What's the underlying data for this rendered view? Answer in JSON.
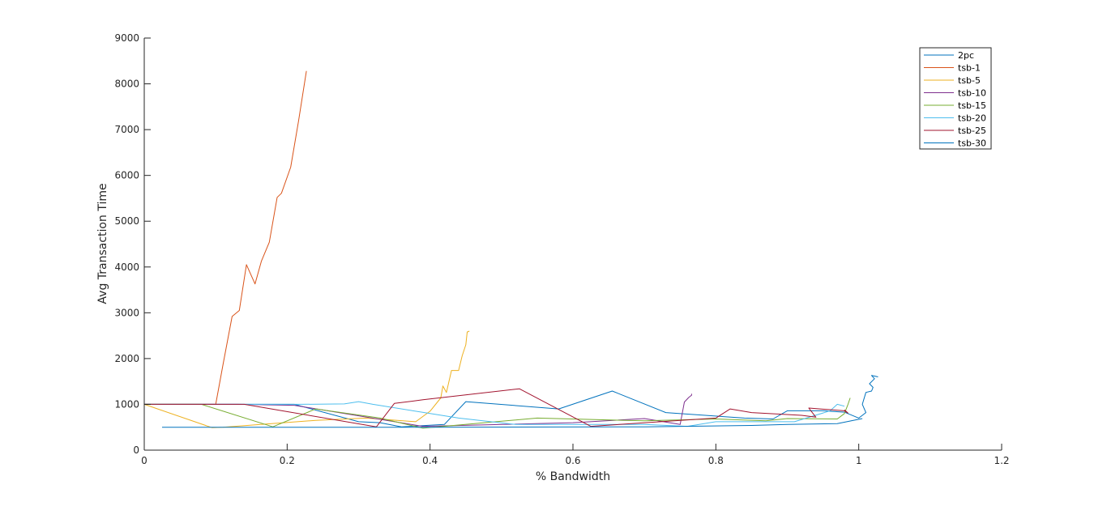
{
  "chart_data": {
    "type": "line",
    "title": "",
    "xlabel": "% Bandwidth",
    "ylabel": "Avg Transaction Time",
    "xlim": [
      0,
      1.2
    ],
    "ylim": [
      0,
      9000
    ],
    "x_ticks": [
      "0",
      "0.2",
      "0.4",
      "0.6",
      "0.8",
      "1",
      "1.2"
    ],
    "y_ticks": [
      "0",
      "1000",
      "2000",
      "3000",
      "4000",
      "5000",
      "6000",
      "7000",
      "8000",
      "9000"
    ],
    "grid": false,
    "legend_position": "top-right",
    "series": [
      {
        "name": "2pc",
        "color": "#0072BD",
        "points": [
          [
            0.0,
            1000
          ],
          [
            0.21,
            1000
          ],
          [
            0.3,
            620
          ],
          [
            0.33,
            600
          ],
          [
            0.36,
            510
          ],
          [
            0.42,
            560
          ],
          [
            0.45,
            1060
          ],
          [
            0.58,
            900
          ],
          [
            0.655,
            1290
          ],
          [
            0.73,
            820
          ],
          [
            0.84,
            700
          ],
          [
            0.88,
            680
          ],
          [
            0.9,
            860
          ],
          [
            0.95,
            860
          ],
          [
            0.98,
            830
          ],
          [
            1.0,
            700
          ],
          [
            1.01,
            820
          ],
          [
            1.005,
            1000
          ],
          [
            1.01,
            1260
          ],
          [
            1.018,
            1290
          ],
          [
            1.02,
            1370
          ],
          [
            1.015,
            1450
          ],
          [
            1.022,
            1560
          ],
          [
            1.018,
            1630
          ],
          [
            1.027,
            1600
          ]
        ]
      },
      {
        "name": "tsb-1",
        "color": "#D95319",
        "points": [
          [
            0.0,
            1000
          ],
          [
            0.1,
            1000
          ],
          [
            0.11,
            1850
          ],
          [
            0.123,
            2920
          ],
          [
            0.133,
            3050
          ],
          [
            0.143,
            4050
          ],
          [
            0.155,
            3630
          ],
          [
            0.164,
            4130
          ],
          [
            0.175,
            4540
          ],
          [
            0.186,
            5520
          ],
          [
            0.192,
            5610
          ],
          [
            0.205,
            6180
          ],
          [
            0.216,
            7190
          ],
          [
            0.227,
            8280
          ]
        ]
      },
      {
        "name": "tsb-5",
        "color": "#EDB120",
        "points": [
          [
            0.0,
            1000
          ],
          [
            0.095,
            490
          ],
          [
            0.11,
            500
          ],
          [
            0.24,
            650
          ],
          [
            0.31,
            700
          ],
          [
            0.38,
            620
          ],
          [
            0.4,
            850
          ],
          [
            0.415,
            1140
          ],
          [
            0.418,
            1400
          ],
          [
            0.423,
            1260
          ],
          [
            0.43,
            1740
          ],
          [
            0.44,
            1740
          ],
          [
            0.445,
            2060
          ],
          [
            0.45,
            2300
          ],
          [
            0.452,
            2580
          ],
          [
            0.455,
            2600
          ]
        ]
      },
      {
        "name": "tsb-10",
        "color": "#7E2F8E",
        "points": [
          [
            0.0,
            1000
          ],
          [
            0.13,
            1000
          ],
          [
            0.21,
            980
          ],
          [
            0.39,
            520
          ],
          [
            0.6,
            600
          ],
          [
            0.7,
            690
          ],
          [
            0.75,
            560
          ],
          [
            0.756,
            1050
          ],
          [
            0.762,
            1150
          ],
          [
            0.766,
            1200
          ],
          [
            0.766,
            1230
          ]
        ]
      },
      {
        "name": "tsb-15",
        "color": "#77AC30",
        "points": [
          [
            0.0,
            1000
          ],
          [
            0.08,
            1000
          ],
          [
            0.18,
            510
          ],
          [
            0.24,
            900
          ],
          [
            0.33,
            700
          ],
          [
            0.39,
            480
          ],
          [
            0.55,
            700
          ],
          [
            0.7,
            640
          ],
          [
            0.8,
            680
          ],
          [
            0.87,
            640
          ],
          [
            0.9,
            690
          ],
          [
            0.97,
            680
          ],
          [
            0.98,
            800
          ],
          [
            0.985,
            1000
          ],
          [
            0.988,
            1140
          ]
        ]
      },
      {
        "name": "tsb-20",
        "color": "#4DBEEE",
        "points": [
          [
            0.0,
            1000
          ],
          [
            0.22,
            1000
          ],
          [
            0.28,
            1010
          ],
          [
            0.3,
            1060
          ],
          [
            0.32,
            1000
          ],
          [
            0.44,
            700
          ],
          [
            0.52,
            560
          ],
          [
            0.7,
            560
          ],
          [
            0.76,
            520
          ],
          [
            0.8,
            620
          ],
          [
            0.87,
            620
          ],
          [
            0.91,
            620
          ],
          [
            0.96,
            860
          ],
          [
            0.97,
            1000
          ],
          [
            0.98,
            960
          ]
        ]
      },
      {
        "name": "tsb-25",
        "color": "#A2142F",
        "points": [
          [
            0.0,
            1000
          ],
          [
            0.14,
            1000
          ],
          [
            0.325,
            510
          ],
          [
            0.35,
            1020
          ],
          [
            0.39,
            1100
          ],
          [
            0.525,
            1340
          ],
          [
            0.625,
            520
          ],
          [
            0.8,
            700
          ],
          [
            0.82,
            900
          ],
          [
            0.85,
            820
          ],
          [
            0.92,
            760
          ],
          [
            0.94,
            720
          ],
          [
            0.93,
            920
          ],
          [
            0.98,
            860
          ],
          [
            0.985,
            810
          ],
          [
            0.98,
            880
          ]
        ]
      },
      {
        "name": "tsb-30",
        "color": "#0072BD",
        "points": [
          [
            0.025,
            500
          ],
          [
            0.4,
            500
          ],
          [
            0.7,
            510
          ],
          [
            0.85,
            540
          ],
          [
            0.9,
            560
          ],
          [
            0.97,
            580
          ],
          [
            1.005,
            690
          ]
        ]
      }
    ]
  }
}
